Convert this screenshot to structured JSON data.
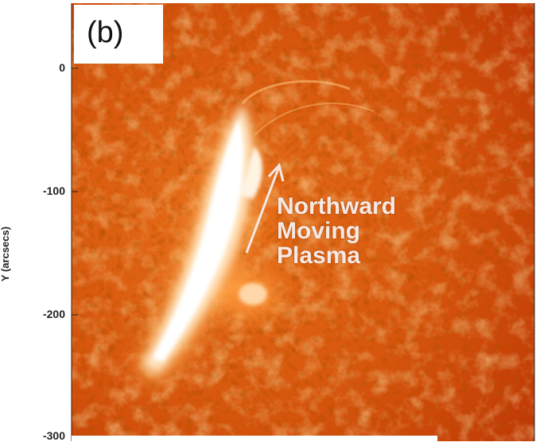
{
  "figure": {
    "panel_label": "(b)",
    "y_axis_label": "Y (arcsecs)",
    "y_ticks": [
      "0",
      "-100",
      "-200",
      "-300"
    ],
    "annotation_lines": [
      "Northward",
      "Moving",
      "Plasma"
    ],
    "colors": {
      "background_dark": "#c23b05",
      "background_mid": "#e0620f",
      "bright_region": "#ffffff",
      "glow": "#ffcf8a",
      "annotation_text": "#f6e9e4",
      "arrow": "#f6e9e4"
    }
  }
}
